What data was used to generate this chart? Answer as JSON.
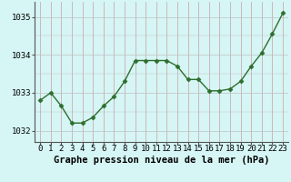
{
  "x": [
    0,
    1,
    2,
    3,
    4,
    5,
    6,
    7,
    8,
    9,
    10,
    11,
    12,
    13,
    14,
    15,
    16,
    17,
    18,
    19,
    20,
    21,
    22,
    23
  ],
  "y": [
    1032.8,
    1033.0,
    1032.65,
    1032.2,
    1032.2,
    1032.35,
    1032.65,
    1032.9,
    1033.3,
    1033.85,
    1033.85,
    1033.85,
    1033.85,
    1033.7,
    1033.35,
    1033.35,
    1033.05,
    1033.05,
    1033.1,
    1033.3,
    1033.7,
    1034.05,
    1034.55,
    1035.1
  ],
  "line_color": "#2d6e2d",
  "marker": "D",
  "marker_size": 2.5,
  "marker_color": "#2d6e2d",
  "bg_color": "#d6f5f5",
  "grid_color_v": "#c8a0a0",
  "grid_color_h": "#c0c0c0",
  "xlabel": "Graphe pression niveau de la mer (hPa)",
  "xlabel_fontsize": 7.5,
  "tick_fontsize": 6.5,
  "ylim": [
    1031.7,
    1035.4
  ],
  "yticks": [
    1032,
    1033,
    1034,
    1035
  ],
  "xticks": [
    0,
    1,
    2,
    3,
    4,
    5,
    6,
    7,
    8,
    9,
    10,
    11,
    12,
    13,
    14,
    15,
    16,
    17,
    18,
    19,
    20,
    21,
    22,
    23
  ],
  "line_width": 1.0
}
